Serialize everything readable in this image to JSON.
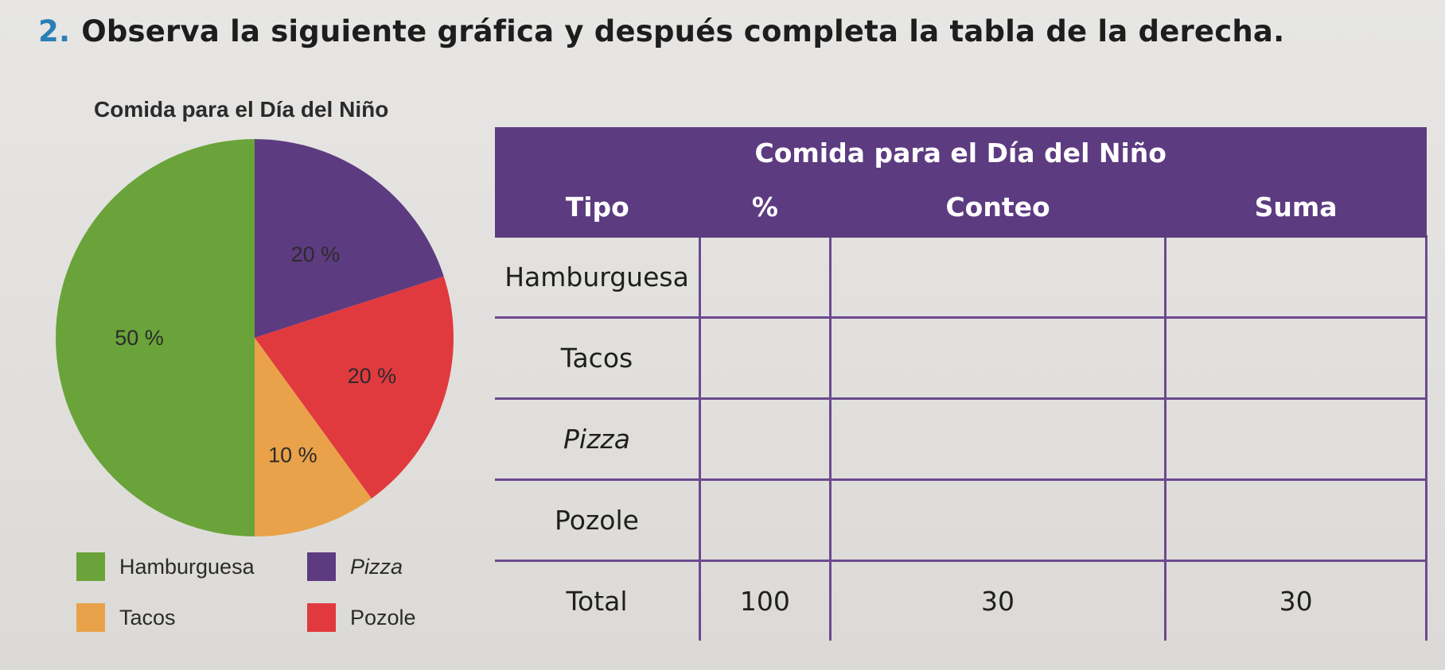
{
  "instruction": {
    "number": "2.",
    "text": "Observa la siguiente gráfica y después completa la tabla de la derecha."
  },
  "chart_data": {
    "type": "pie",
    "title": "Comida para el Día del Niño",
    "categories": [
      "Hamburguesa",
      "Pizza",
      "Pozole",
      "Tacos"
    ],
    "values": [
      50,
      20,
      20,
      10
    ],
    "labels": [
      "50 %",
      "20 %",
      "20 %",
      "10 %"
    ],
    "colors": [
      "#6aa33a",
      "#5d3b80",
      "#e03a3e",
      "#e9a24a"
    ],
    "legend": [
      "Hamburguesa",
      "Pizza",
      "Tacos",
      "Pozole"
    ],
    "legend_colors": [
      "#6aa33a",
      "#5d3b80",
      "#e9a24a",
      "#e03a3e"
    ]
  },
  "table": {
    "title": "Comida para el Día del Niño",
    "headers": [
      "Tipo",
      "%",
      "Conteo",
      "Suma"
    ],
    "rows": [
      {
        "tipo": "Hamburguesa",
        "pct": "",
        "conteo": "",
        "suma": ""
      },
      {
        "tipo": "Tacos",
        "pct": "",
        "conteo": "",
        "suma": ""
      },
      {
        "tipo": "Pizza",
        "pct": "",
        "conteo": "",
        "suma": ""
      },
      {
        "tipo": "Pozole",
        "pct": "",
        "conteo": "",
        "suma": ""
      }
    ],
    "total": {
      "tipo": "Total",
      "pct": "100",
      "conteo": "30",
      "suma": "30"
    }
  },
  "colors": {
    "table_header": "#5d3b80",
    "instruction_number": "#2a7fb6"
  }
}
